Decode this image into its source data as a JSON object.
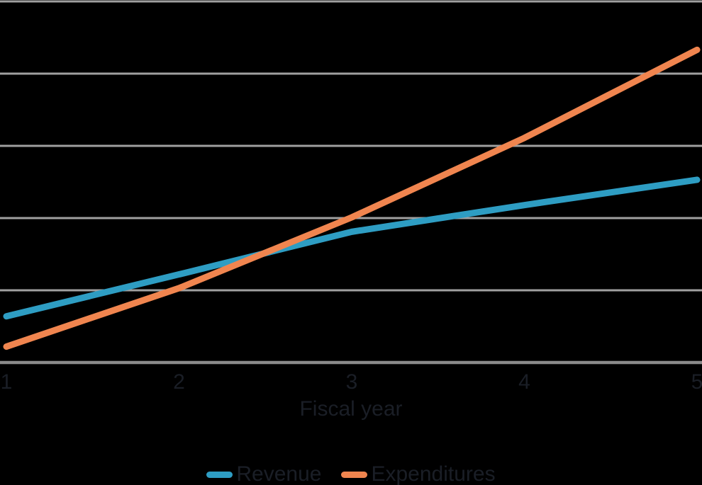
{
  "background_color": "#000000",
  "styles": {
    "gridline_color": "#a0a0a0",
    "axis_line_color": "#8b8b8b",
    "text_color": "#1a1e26",
    "revenue_color": "#2e9dc3",
    "expenditures_color": "#f0854f"
  },
  "chart_data": {
    "type": "line",
    "x": [
      1,
      2,
      3,
      4,
      5
    ],
    "x_tick_labels": [
      "1",
      "2",
      "3",
      "4",
      "5"
    ],
    "xlabel": "Fiscal year",
    "ylabel": "",
    "ylim": [
      0,
      5
    ],
    "y_gridline_step": 1,
    "y_axis_labels_visible": false,
    "grid": "horizontal",
    "legend_position": "bottom",
    "value_units": "gridline units (y axis is unlabeled; values read relative to horizontal gridlines)",
    "series": [
      {
        "name": "Revenue",
        "color": "#2e9dc3",
        "values": [
          0.64,
          1.22,
          1.81,
          2.18,
          2.53
        ]
      },
      {
        "name": "Expenditures",
        "color": "#f0854f",
        "values": [
          0.22,
          1.03,
          2.01,
          3.11,
          4.33
        ]
      }
    ]
  }
}
